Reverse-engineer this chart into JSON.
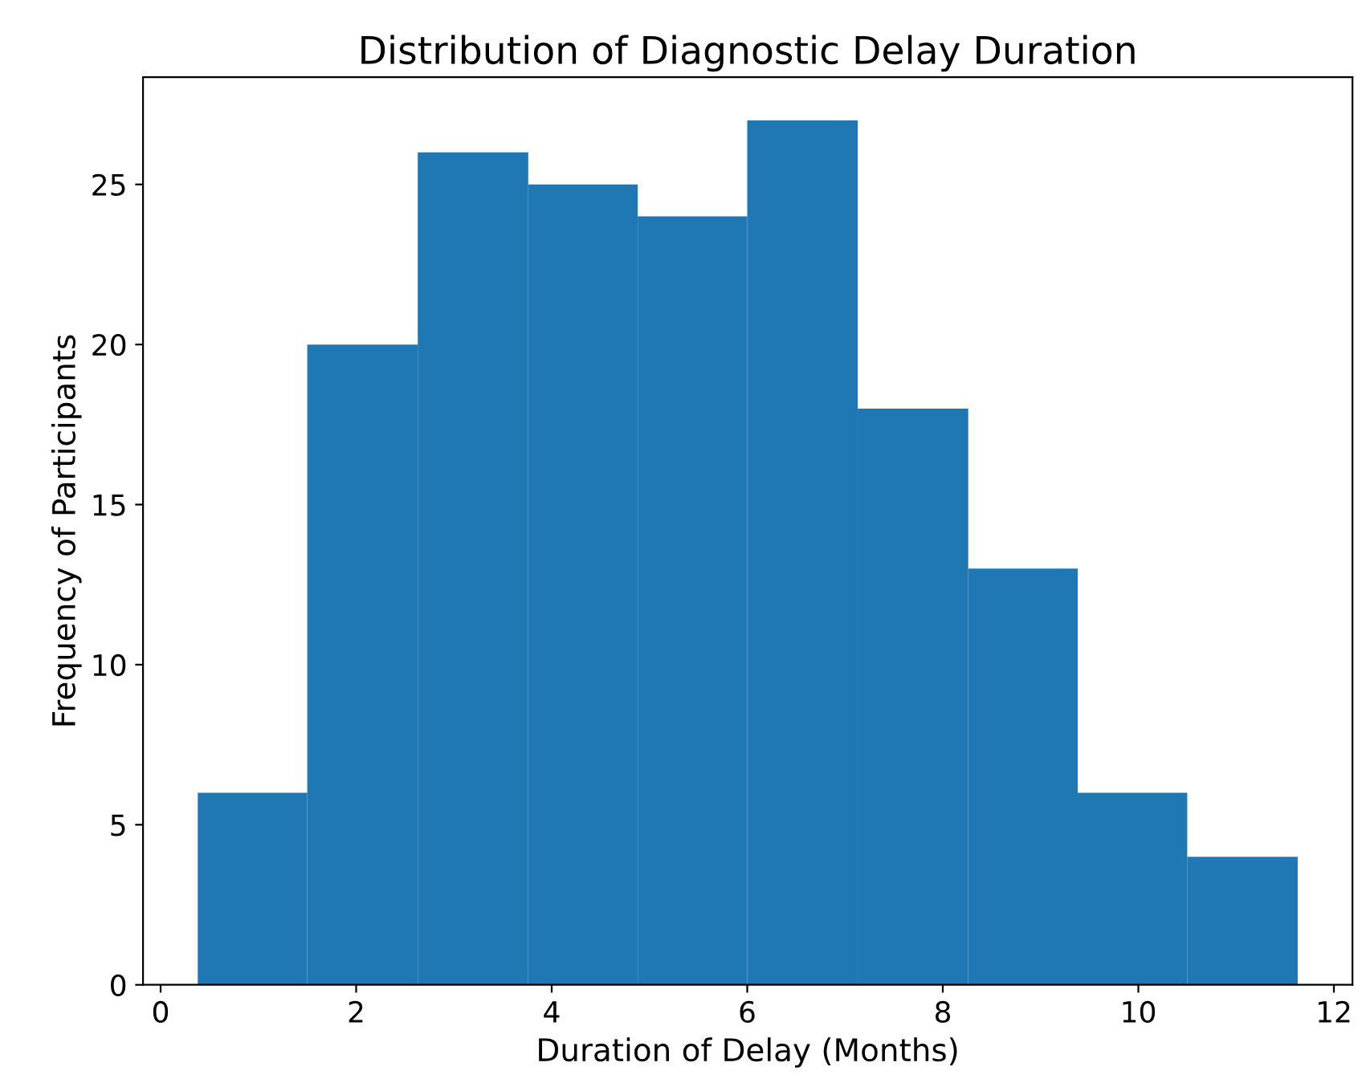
{
  "chart_data": {
    "type": "histogram",
    "title": "Distribution of Diagnostic Delay Duration",
    "xlabel": "Duration of Delay (Months)",
    "ylabel": "Frequency of Participants",
    "bins": [
      0.38,
      1.5,
      2.63,
      3.76,
      4.88,
      6.0,
      7.13,
      8.26,
      9.38,
      10.5,
      11.63
    ],
    "values": [
      6,
      20,
      26,
      25,
      24,
      27,
      18,
      13,
      6,
      4
    ],
    "color": "#1f77b4",
    "xlim": [
      -0.18,
      12.19
    ],
    "ylim": [
      0,
      28.35
    ],
    "xticks": [
      0,
      2,
      4,
      6,
      8,
      10,
      12
    ],
    "yticks": [
      0,
      5,
      10,
      15,
      20,
      25
    ],
    "grid": false
  }
}
